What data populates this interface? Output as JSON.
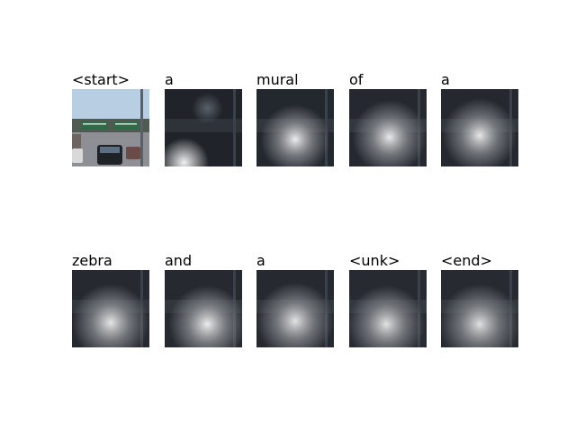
{
  "figure": {
    "words": [
      "<start>",
      "a",
      "mural",
      "of",
      "a",
      "zebra",
      "and",
      "a",
      "<unk>",
      "<end>"
    ],
    "attention_maps": [
      {
        "word": "<start>",
        "kind": "original-photo"
      },
      {
        "word": "a",
        "kind": "attention",
        "focus": "bottom-left"
      },
      {
        "word": "mural",
        "kind": "attention",
        "focus": "center"
      },
      {
        "word": "of",
        "kind": "attention",
        "focus": "center"
      },
      {
        "word": "a",
        "kind": "attention",
        "focus": "center"
      },
      {
        "word": "zebra",
        "kind": "attention",
        "focus": "center-bottom"
      },
      {
        "word": "and",
        "kind": "attention",
        "focus": "center-bottom"
      },
      {
        "word": "a",
        "kind": "attention",
        "focus": "center-bottom"
      },
      {
        "word": "<unk>",
        "kind": "attention",
        "focus": "center-bottom"
      },
      {
        "word": "<end>",
        "kind": "attention",
        "focus": "center-bottom"
      }
    ],
    "colors": {
      "background": "#ffffff",
      "overlay_dark": "#23272e",
      "highlight": "#f0f0f0",
      "sky": "#a9c3dc",
      "sign_green": "#2f6a47"
    }
  }
}
